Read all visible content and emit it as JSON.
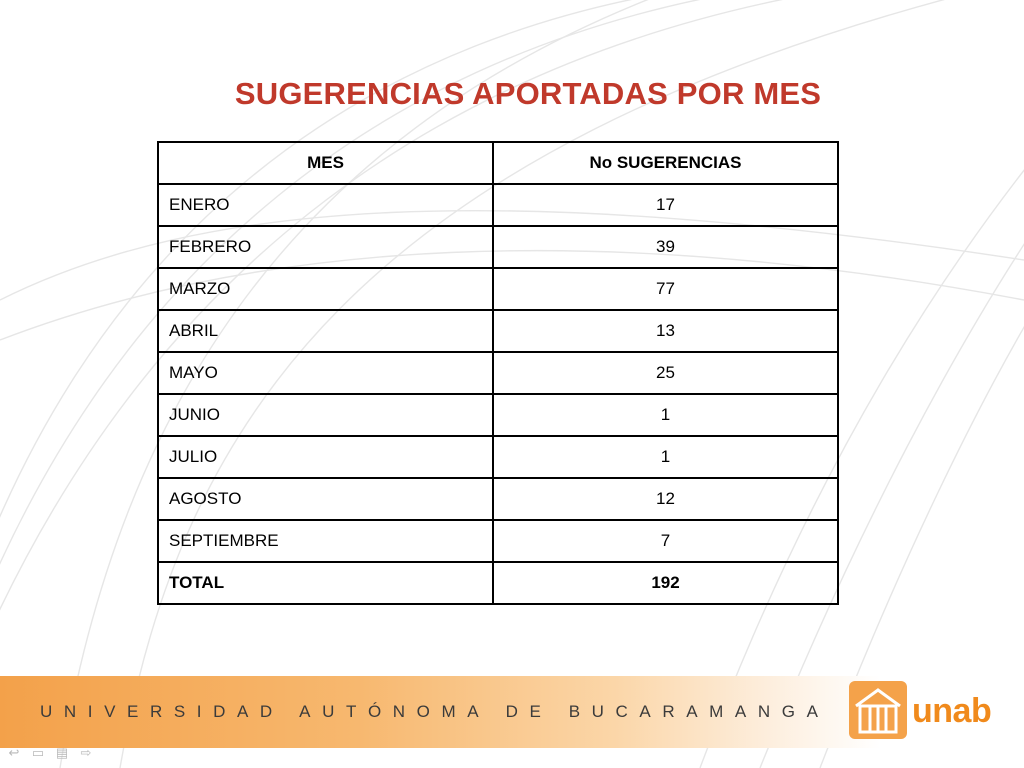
{
  "title": "SUGERENCIAS APORTADAS POR MES",
  "table": {
    "headers": [
      "MES",
      "No SUGERENCIAS"
    ],
    "rows": [
      {
        "month": "ENERO",
        "value": "17"
      },
      {
        "month": "FEBRERO",
        "value": "39"
      },
      {
        "month": "MARZO",
        "value": "77"
      },
      {
        "month": "ABRIL",
        "value": "13"
      },
      {
        "month": "MAYO",
        "value": "25"
      },
      {
        "month": "JUNIO",
        "value": "1"
      },
      {
        "month": "JULIO",
        "value": "1"
      },
      {
        "month": "AGOSTO",
        "value": "12"
      },
      {
        "month": "SEPTIEMBRE",
        "value": "7"
      }
    ],
    "total": {
      "month": "TOTAL",
      "value": "192"
    }
  },
  "footer": {
    "university": "UNIVERSIDAD AUTÓNOMA DE BUCARAMANGA",
    "logo_text": "unab",
    "accent_color": "#f08a1c"
  },
  "title_color": "#c0392b",
  "nav_icons": [
    "prev-icon",
    "menu-icon",
    "notes-icon",
    "next-icon"
  ]
}
